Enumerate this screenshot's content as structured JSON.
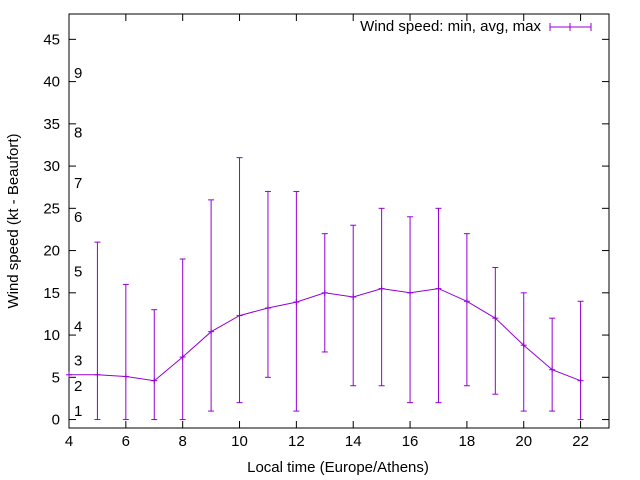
{
  "chart_data": {
    "type": "line",
    "title": "",
    "xlabel": "Local time (Europe/Athens)",
    "ylabel": "Wind speed (kt - Beaufort)",
    "xlim": [
      4,
      23
    ],
    "ylim": [
      -1,
      48
    ],
    "x_ticks": [
      4,
      6,
      8,
      10,
      12,
      14,
      16,
      18,
      20,
      22
    ],
    "y_ticks": [
      0,
      5,
      10,
      15,
      20,
      25,
      30,
      35,
      40,
      45
    ],
    "grid": false,
    "legend_position": "top-right",
    "color": "#9400d3",
    "series": [
      {
        "name": "Wind speed: min, avg, max",
        "x": [
          4,
          5,
          6,
          7,
          8,
          9,
          10,
          11,
          12,
          13,
          14,
          15,
          16,
          17,
          18,
          19,
          20,
          21,
          22
        ],
        "avg": [
          5.3,
          5.3,
          5.1,
          4.6,
          7.4,
          10.4,
          12.3,
          13.2,
          13.9,
          15.0,
          14.5,
          15.5,
          15.0,
          15.5,
          14.0,
          12.0,
          8.8,
          5.9,
          4.6
        ],
        "min": [
          null,
          0,
          0,
          0,
          0,
          1,
          2,
          5,
          1,
          8,
          4,
          4,
          2,
          2,
          4,
          3,
          1,
          1,
          0
        ],
        "max": [
          null,
          21,
          16,
          13,
          19,
          26,
          31,
          27,
          27,
          22,
          23,
          25,
          24,
          25,
          22,
          18,
          15,
          12,
          14
        ]
      }
    ],
    "beaufort_labels": [
      {
        "label": "1",
        "y": 1
      },
      {
        "label": "2",
        "y": 4
      },
      {
        "label": "3",
        "y": 7
      },
      {
        "label": "4",
        "y": 11
      },
      {
        "label": "5",
        "y": 17.5
      },
      {
        "label": "6",
        "y": 24
      },
      {
        "label": "7",
        "y": 28
      },
      {
        "label": "8",
        "y": 34
      },
      {
        "label": "9",
        "y": 41
      }
    ]
  }
}
